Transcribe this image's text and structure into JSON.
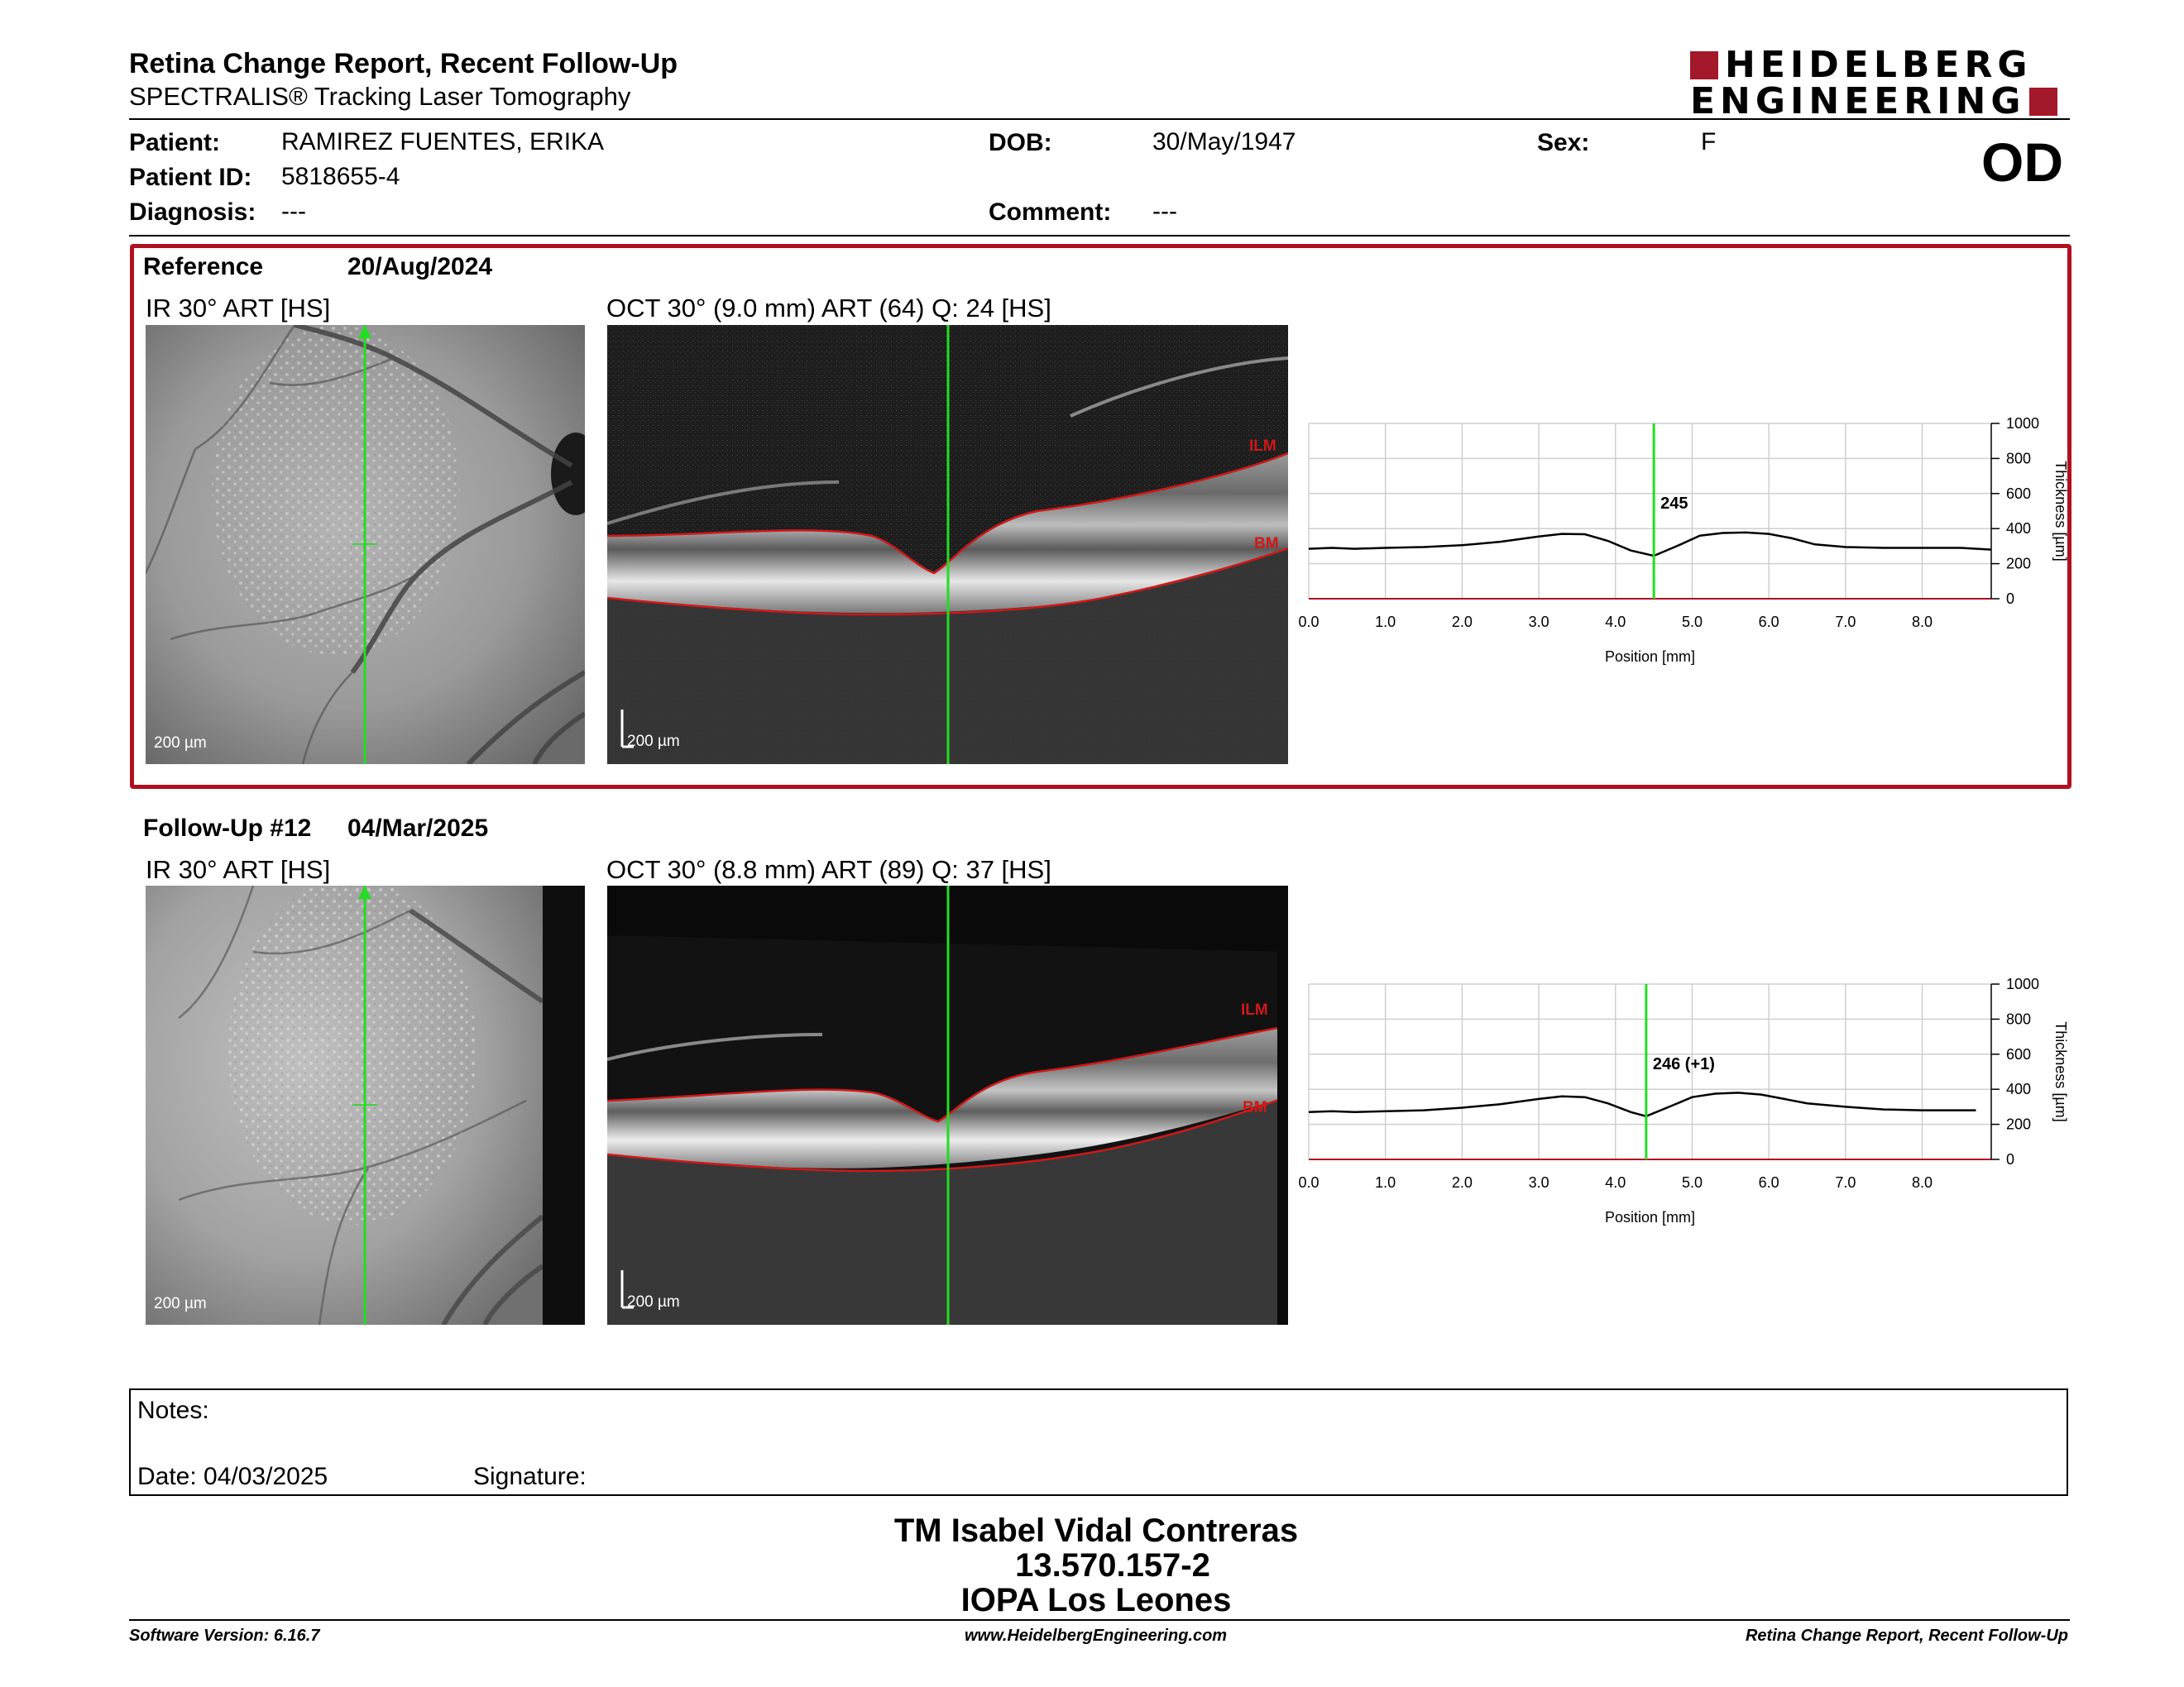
{
  "header": {
    "title": "Retina Change Report, Recent Follow-Up",
    "subtitle": "SPECTRALIS® Tracking Laser Tomography",
    "logo_line1": "HEIDELBERG",
    "logo_line2": "ENGINEERING",
    "eye": "OD"
  },
  "patient": {
    "patient_label": "Patient:",
    "patient_value": "RAMIREZ FUENTES, ERIKA",
    "id_label": "Patient ID:",
    "id_value": "5818655-4",
    "diagnosis_label": "Diagnosis:",
    "diagnosis_value": "---",
    "dob_label": "DOB:",
    "dob_value": "30/May/1947",
    "comment_label": "Comment:",
    "comment_value": "---",
    "sex_label": "Sex:",
    "sex_value": "F"
  },
  "reference": {
    "label": "Reference",
    "date": "20/Aug/2024",
    "ir_label": "IR 30° ART [HS]",
    "oct_label": "OCT 30° (9.0 mm) ART (64) Q: 24 [HS]",
    "ir_scale": "200 µm",
    "oct_scale": "200 µm",
    "ilm": "ILM",
    "bm": "BM"
  },
  "followup": {
    "label": "Follow-Up #12",
    "date": "04/Mar/2025",
    "ir_label": "IR 30° ART [HS]",
    "oct_label": "OCT 30° (8.8 mm) ART (89) Q: 37 [HS]",
    "ir_scale": "200 µm",
    "oct_scale": "200 µm",
    "ilm": "ILM",
    "bm": "BM"
  },
  "colors": {
    "brand_red": "#a3182a",
    "frame_red": "#b01020",
    "scan_line": "#22dd22",
    "seg_line": "#d01818"
  },
  "chart_data": [
    {
      "type": "line",
      "xlabel": "Position [mm]",
      "ylabel": "Thickness [µm]",
      "xlim": [
        0,
        8.9
      ],
      "ylim": [
        0,
        1000
      ],
      "x_ticks": [
        "0.0",
        "1.0",
        "2.0",
        "3.0",
        "4.0",
        "5.0",
        "6.0",
        "7.0",
        "8.0"
      ],
      "y_ticks": [
        "0",
        "200",
        "400",
        "600",
        "800",
        "1000"
      ],
      "grid": true,
      "marker_x": 4.5,
      "marker_label": "245",
      "series": [
        {
          "x": [
            0,
            0.3,
            0.6,
            1.0,
            1.5,
            2.0,
            2.5,
            3.0,
            3.3,
            3.6,
            3.9,
            4.2,
            4.5,
            4.8,
            5.1,
            5.4,
            5.7,
            6.0,
            6.3,
            6.6,
            7.0,
            7.5,
            8.0,
            8.5,
            8.9
          ],
          "values": [
            285,
            290,
            285,
            290,
            295,
            305,
            325,
            355,
            370,
            368,
            330,
            275,
            245,
            300,
            360,
            375,
            378,
            370,
            345,
            310,
            295,
            290,
            290,
            290,
            280
          ]
        }
      ]
    },
    {
      "type": "line",
      "xlabel": "Position [mm]",
      "ylabel": "Thickness [µm]",
      "xlim": [
        0,
        8.9
      ],
      "ylim": [
        0,
        1000
      ],
      "x_ticks": [
        "0.0",
        "1.0",
        "2.0",
        "3.0",
        "4.0",
        "5.0",
        "6.0",
        "7.0",
        "8.0"
      ],
      "y_ticks": [
        "0",
        "200",
        "400",
        "600",
        "800",
        "1000"
      ],
      "grid": true,
      "marker_x": 4.4,
      "marker_label": "246 (+1)",
      "series": [
        {
          "x": [
            0,
            0.3,
            0.6,
            1.0,
            1.5,
            2.0,
            2.5,
            3.0,
            3.3,
            3.6,
            3.9,
            4.2,
            4.4,
            4.7,
            5.0,
            5.3,
            5.6,
            5.9,
            6.2,
            6.5,
            7.0,
            7.5,
            8.0,
            8.4,
            8.7
          ],
          "values": [
            270,
            275,
            270,
            275,
            280,
            295,
            315,
            345,
            360,
            355,
            320,
            270,
            246,
            300,
            355,
            375,
            380,
            370,
            345,
            320,
            300,
            285,
            280,
            280,
            280
          ]
        }
      ]
    }
  ],
  "notes": {
    "notes_label": "Notes:",
    "date_label": "Date: 04/03/2025",
    "signature_label": "Signature:"
  },
  "signature_block": {
    "line1": "TM Isabel Vidal Contreras",
    "line2": "13.570.157-2",
    "line3": "IOPA Los Leones"
  },
  "footer": {
    "left": "Software Version: 6.16.7",
    "center": "www.HeidelbergEngineering.com",
    "right": "Retina Change Report, Recent Follow-Up"
  }
}
